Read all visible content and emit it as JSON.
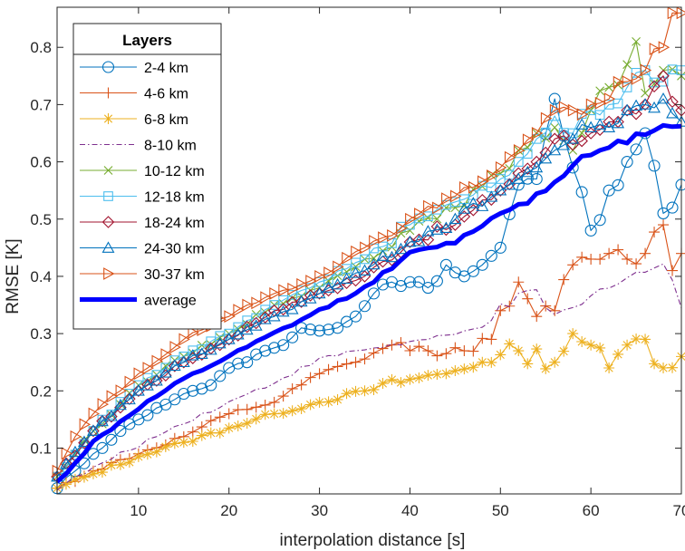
{
  "chart_data": {
    "type": "line",
    "title": "",
    "xlabel": "interpolation distance [s]",
    "ylabel": "RMSE [K]",
    "xlim": [
      1,
      70
    ],
    "ylim": [
      0.02,
      0.87
    ],
    "xticks": [
      10,
      20,
      30,
      40,
      50,
      60,
      70
    ],
    "yticks": [
      0.1,
      0.2,
      0.3,
      0.4,
      0.5,
      0.6,
      0.7,
      0.8
    ],
    "xtick_labels": [
      "10",
      "20",
      "30",
      "40",
      "50",
      "60",
      "70"
    ],
    "ytick_labels": [
      "0.1",
      "0.2",
      "0.3",
      "0.4",
      "0.5",
      "0.6",
      "0.7",
      "0.8"
    ],
    "grid": false,
    "legend": {
      "title": "Layers",
      "placement": "top-left"
    },
    "series": [
      {
        "name": "2-4 km",
        "color": "#0072BD",
        "marker": "circle",
        "dash": "solid",
        "anchors": [
          [
            1,
            0.03
          ],
          [
            3,
            0.06
          ],
          [
            5,
            0.09
          ],
          [
            8,
            0.13
          ],
          [
            10,
            0.15
          ],
          [
            12,
            0.17
          ],
          [
            14,
            0.185
          ],
          [
            16,
            0.2
          ],
          [
            18,
            0.21
          ],
          [
            20,
            0.24
          ],
          [
            22,
            0.25
          ],
          [
            24,
            0.27
          ],
          [
            26,
            0.28
          ],
          [
            28,
            0.31
          ],
          [
            30,
            0.305
          ],
          [
            32,
            0.31
          ],
          [
            34,
            0.33
          ],
          [
            36,
            0.37
          ],
          [
            38,
            0.39
          ],
          [
            40,
            0.39
          ],
          [
            42,
            0.38
          ],
          [
            44,
            0.42
          ],
          [
            46,
            0.4
          ],
          [
            48,
            0.42
          ],
          [
            50,
            0.45
          ],
          [
            52,
            0.56
          ],
          [
            54,
            0.57
          ],
          [
            56,
            0.71
          ],
          [
            58,
            0.59
          ],
          [
            60,
            0.48
          ],
          [
            62,
            0.55
          ],
          [
            64,
            0.6
          ],
          [
            66,
            0.65
          ],
          [
            68,
            0.51
          ],
          [
            70,
            0.56
          ]
        ]
      },
      {
        "name": "4-6 km",
        "color": "#D95319",
        "marker": "plus",
        "dash": "solid",
        "anchors": [
          [
            1,
            0.03
          ],
          [
            5,
            0.06
          ],
          [
            10,
            0.09
          ],
          [
            15,
            0.12
          ],
          [
            20,
            0.16
          ],
          [
            25,
            0.18
          ],
          [
            30,
            0.23
          ],
          [
            34,
            0.25
          ],
          [
            38,
            0.28
          ],
          [
            42,
            0.27
          ],
          [
            46,
            0.27
          ],
          [
            49,
            0.29
          ],
          [
            50,
            0.34
          ],
          [
            52,
            0.39
          ],
          [
            54,
            0.33
          ],
          [
            56,
            0.34
          ],
          [
            58,
            0.42
          ],
          [
            60,
            0.43
          ],
          [
            62,
            0.44
          ],
          [
            64,
            0.43
          ],
          [
            66,
            0.44
          ],
          [
            68,
            0.49
          ],
          [
            69,
            0.41
          ],
          [
            70,
            0.44
          ]
        ]
      },
      {
        "name": "6-8 km",
        "color": "#EDB120",
        "marker": "asterisk",
        "dash": "solid",
        "anchors": [
          [
            1,
            0.03
          ],
          [
            5,
            0.055
          ],
          [
            10,
            0.085
          ],
          [
            15,
            0.11
          ],
          [
            20,
            0.135
          ],
          [
            25,
            0.16
          ],
          [
            30,
            0.18
          ],
          [
            35,
            0.2
          ],
          [
            40,
            0.22
          ],
          [
            44,
            0.23
          ],
          [
            48,
            0.25
          ],
          [
            52,
            0.27
          ],
          [
            56,
            0.25
          ],
          [
            58,
            0.3
          ],
          [
            60,
            0.28
          ],
          [
            62,
            0.24
          ],
          [
            64,
            0.28
          ],
          [
            66,
            0.29
          ],
          [
            68,
            0.24
          ],
          [
            70,
            0.26
          ]
        ]
      },
      {
        "name": "8-10 km",
        "color": "#7E2F8E",
        "marker": "none",
        "dash": "dashdot",
        "anchors": [
          [
            1,
            0.03
          ],
          [
            5,
            0.065
          ],
          [
            10,
            0.105
          ],
          [
            15,
            0.145
          ],
          [
            20,
            0.18
          ],
          [
            25,
            0.215
          ],
          [
            30,
            0.255
          ],
          [
            34,
            0.27
          ],
          [
            38,
            0.28
          ],
          [
            42,
            0.29
          ],
          [
            46,
            0.3
          ],
          [
            50,
            0.34
          ],
          [
            52,
            0.36
          ],
          [
            54,
            0.37
          ],
          [
            56,
            0.33
          ],
          [
            58,
            0.34
          ],
          [
            60,
            0.36
          ],
          [
            62,
            0.39
          ],
          [
            64,
            0.4
          ],
          [
            66,
            0.41
          ],
          [
            68,
            0.42
          ],
          [
            70,
            0.35
          ]
        ]
      },
      {
        "name": "10-12 km",
        "color": "#77AC30",
        "marker": "x",
        "dash": "solid",
        "anchors": [
          [
            1,
            0.05
          ],
          [
            5,
            0.13
          ],
          [
            10,
            0.21
          ],
          [
            15,
            0.26
          ],
          [
            20,
            0.3
          ],
          [
            25,
            0.35
          ],
          [
            30,
            0.38
          ],
          [
            35,
            0.43
          ],
          [
            40,
            0.48
          ],
          [
            45,
            0.52
          ],
          [
            50,
            0.58
          ],
          [
            52,
            0.62
          ],
          [
            54,
            0.65
          ],
          [
            56,
            0.66
          ],
          [
            58,
            0.62
          ],
          [
            60,
            0.69
          ],
          [
            62,
            0.73
          ],
          [
            64,
            0.77
          ],
          [
            65,
            0.81
          ],
          [
            66,
            0.72
          ],
          [
            68,
            0.76
          ],
          [
            70,
            0.75
          ]
        ]
      },
      {
        "name": "12-18 km",
        "color": "#4DBEEE",
        "marker": "square",
        "dash": "solid",
        "anchors": [
          [
            1,
            0.05
          ],
          [
            5,
            0.13
          ],
          [
            10,
            0.21
          ],
          [
            15,
            0.26
          ],
          [
            20,
            0.3
          ],
          [
            25,
            0.35
          ],
          [
            30,
            0.39
          ],
          [
            35,
            0.43
          ],
          [
            40,
            0.49
          ],
          [
            45,
            0.53
          ],
          [
            50,
            0.57
          ],
          [
            52,
            0.6
          ],
          [
            54,
            0.64
          ],
          [
            56,
            0.68
          ],
          [
            58,
            0.65
          ],
          [
            60,
            0.69
          ],
          [
            62,
            0.7
          ],
          [
            64,
            0.73
          ],
          [
            66,
            0.76
          ],
          [
            68,
            0.74
          ],
          [
            70,
            0.76
          ]
        ]
      },
      {
        "name": "18-24 km",
        "color": "#A2142F",
        "marker": "diamond",
        "dash": "solid",
        "anchors": [
          [
            1,
            0.05
          ],
          [
            5,
            0.13
          ],
          [
            10,
            0.2
          ],
          [
            15,
            0.25
          ],
          [
            20,
            0.29
          ],
          [
            25,
            0.34
          ],
          [
            30,
            0.37
          ],
          [
            35,
            0.4
          ],
          [
            40,
            0.46
          ],
          [
            45,
            0.49
          ],
          [
            50,
            0.55
          ],
          [
            52,
            0.58
          ],
          [
            54,
            0.6
          ],
          [
            56,
            0.64
          ],
          [
            58,
            0.63
          ],
          [
            60,
            0.65
          ],
          [
            62,
            0.67
          ],
          [
            64,
            0.69
          ],
          [
            66,
            0.7
          ],
          [
            68,
            0.75
          ],
          [
            70,
            0.69
          ]
        ]
      },
      {
        "name": "24-30 km",
        "color": "#0072BD",
        "marker": "triangle",
        "dash": "solid",
        "anchors": [
          [
            1,
            0.05
          ],
          [
            5,
            0.13
          ],
          [
            10,
            0.2
          ],
          [
            15,
            0.25
          ],
          [
            20,
            0.29
          ],
          [
            25,
            0.33
          ],
          [
            30,
            0.37
          ],
          [
            35,
            0.41
          ],
          [
            40,
            0.46
          ],
          [
            45,
            0.5
          ],
          [
            50,
            0.55
          ],
          [
            52,
            0.57
          ],
          [
            54,
            0.59
          ],
          [
            56,
            0.62
          ],
          [
            58,
            0.64
          ],
          [
            60,
            0.66
          ],
          [
            62,
            0.66
          ],
          [
            64,
            0.69
          ],
          [
            66,
            0.7
          ],
          [
            68,
            0.71
          ],
          [
            70,
            0.67
          ]
        ]
      },
      {
        "name": "30-37 km",
        "color": "#D95319",
        "marker": "triangle-right",
        "dash": "solid",
        "anchors": [
          [
            1,
            0.06
          ],
          [
            3,
            0.12
          ],
          [
            5,
            0.16
          ],
          [
            10,
            0.23
          ],
          [
            15,
            0.29
          ],
          [
            20,
            0.33
          ],
          [
            25,
            0.37
          ],
          [
            30,
            0.4
          ],
          [
            35,
            0.45
          ],
          [
            40,
            0.5
          ],
          [
            45,
            0.54
          ],
          [
            50,
            0.59
          ],
          [
            52,
            0.62
          ],
          [
            54,
            0.65
          ],
          [
            56,
            0.69
          ],
          [
            58,
            0.69
          ],
          [
            60,
            0.7
          ],
          [
            62,
            0.71
          ],
          [
            64,
            0.74
          ],
          [
            66,
            0.76
          ],
          [
            68,
            0.8
          ],
          [
            69,
            0.86
          ],
          [
            70,
            0.86
          ]
        ]
      },
      {
        "name": "average",
        "color": "#0000FF",
        "marker": "none",
        "dash": "solid",
        "thick": true,
        "anchors": [
          [
            1,
            0.04
          ],
          [
            5,
            0.11
          ],
          [
            10,
            0.17
          ],
          [
            15,
            0.22
          ],
          [
            20,
            0.26
          ],
          [
            25,
            0.3
          ],
          [
            30,
            0.34
          ],
          [
            35,
            0.38
          ],
          [
            40,
            0.44
          ],
          [
            45,
            0.46
          ],
          [
            50,
            0.51
          ],
          [
            55,
            0.55
          ],
          [
            58,
            0.6
          ],
          [
            60,
            0.61
          ],
          [
            62,
            0.62
          ],
          [
            64,
            0.64
          ],
          [
            66,
            0.65
          ],
          [
            68,
            0.67
          ],
          [
            70,
            0.66
          ]
        ]
      }
    ]
  }
}
